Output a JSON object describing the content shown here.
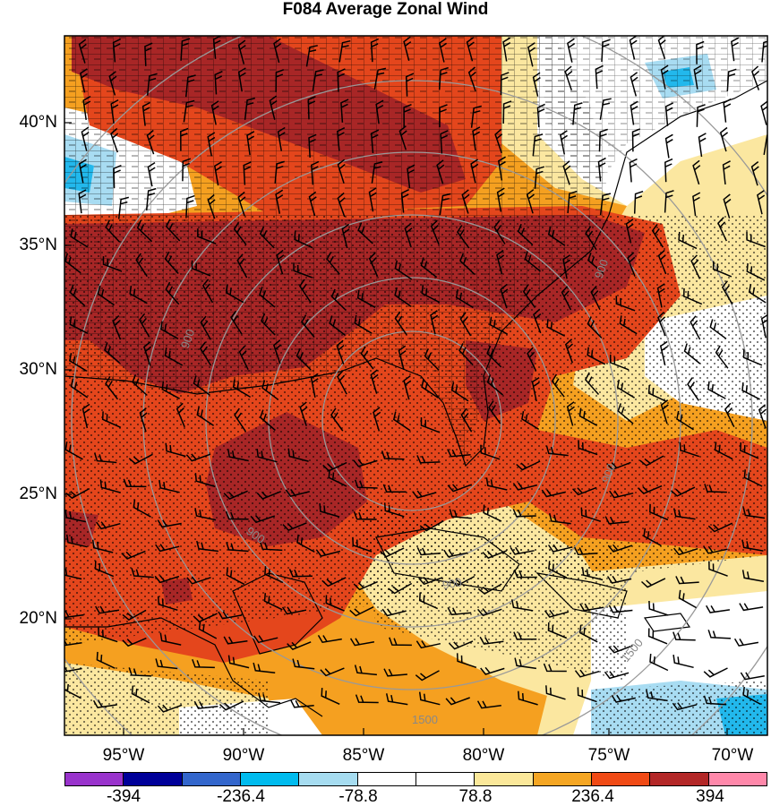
{
  "title": "F084 Average Zonal Wind",
  "lat_labels": [
    "40°N",
    "35°N",
    "30°N",
    "25°N",
    "20°N"
  ],
  "lon_labels": [
    "95°W",
    "90°W",
    "85°W",
    "80°W",
    "75°W",
    "70°W"
  ],
  "ring_labels": [
    "900",
    "900",
    "900",
    "900",
    "900",
    "1500",
    "1500"
  ],
  "colorbar": {
    "colors": [
      "#9933cc",
      "#000099",
      "#3366cc",
      "#00bbee",
      "#a6dcf0",
      "#ffffff",
      "#ffffff",
      "#fbe89a",
      "#f5a623",
      "#f04a15",
      "#b32727",
      "#ff88aa"
    ],
    "labels": [
      "-394",
      "-236.4",
      "-78.8",
      "78.8",
      "236.4",
      "394"
    ]
  },
  "fill_colors": {
    "dark_red": "#a82626",
    "red_orange": "#e4461c",
    "orange": "#f5a020",
    "light_yellow": "#fbe7a0",
    "light_blue": "#a8dcf2",
    "cyan": "#22b8ec"
  }
}
